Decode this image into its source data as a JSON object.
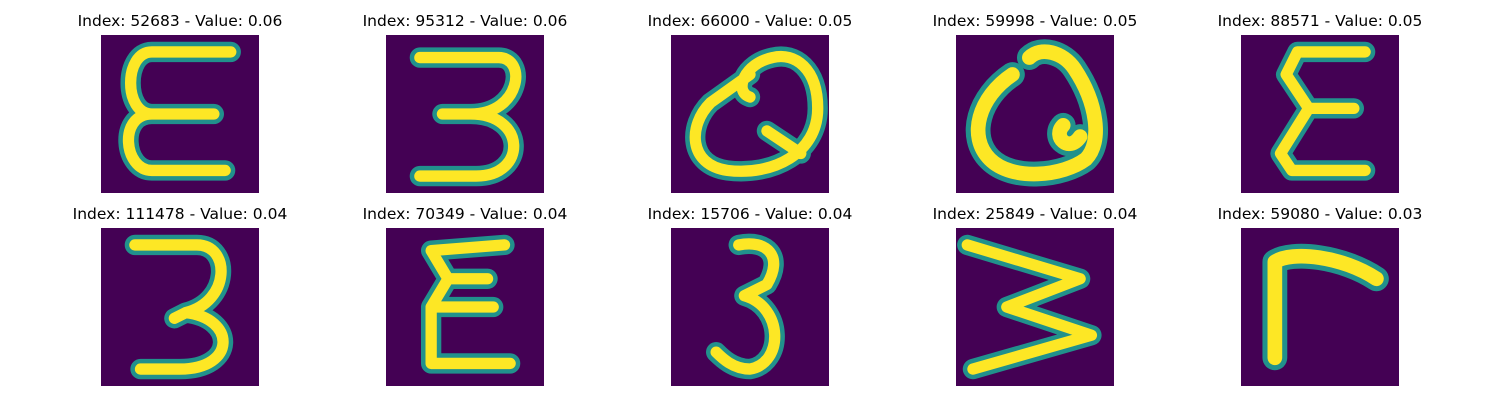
{
  "colors": {
    "background": "#440154",
    "stroke_edge": "#21918c",
    "stroke_mid": "#5ec962",
    "stroke_core": "#fde725"
  },
  "panels": [
    {
      "title": "Index: 52683 - Value: 0.06",
      "glyph": "epsilon"
    },
    {
      "title": "Index: 95312 - Value: 0.06",
      "glyph": "three"
    },
    {
      "title": "Index: 66000 - Value: 0.05",
      "glyph": "q-loop"
    },
    {
      "title": "Index: 59998 - Value: 0.05",
      "glyph": "q-loop-thick"
    },
    {
      "title": "Index: 88571 - Value: 0.05",
      "glyph": "sigma"
    },
    {
      "title": "Index: 111478 - Value: 0.04",
      "glyph": "three"
    },
    {
      "title": "Index: 70349 - Value: 0.04",
      "glyph": "sigma-wide"
    },
    {
      "title": "Index: 15706 - Value: 0.04",
      "glyph": "three-narrow"
    },
    {
      "title": "Index: 25849 - Value: 0.04",
      "glyph": "sideways-w"
    },
    {
      "title": "Index: 59080 - Value: 0.03",
      "glyph": "gamma"
    }
  ]
}
